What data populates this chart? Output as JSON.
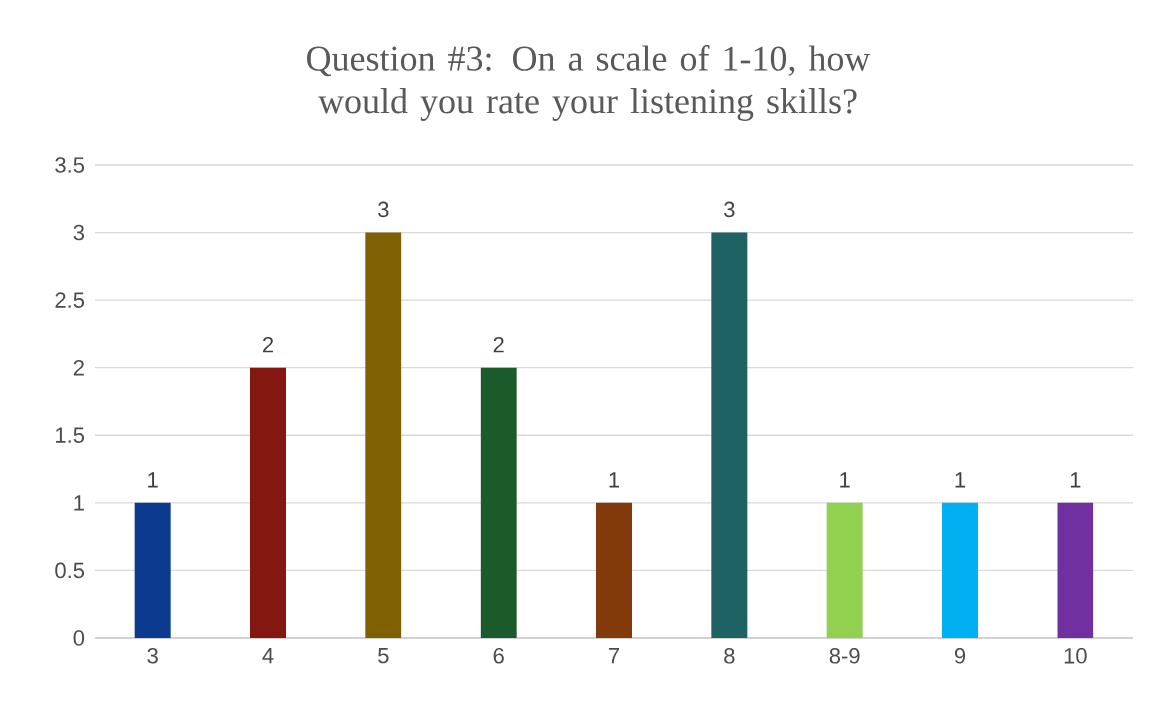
{
  "chart_data": {
    "type": "bar",
    "title": "Question #3: On a scale of 1-10, how would you rate your listening skills?",
    "categories": [
      "3",
      "4",
      "5",
      "6",
      "7",
      "8",
      "8-9",
      "9",
      "10"
    ],
    "values": [
      1,
      2,
      3,
      2,
      1,
      3,
      1,
      1,
      1
    ],
    "colors": [
      "#0b3a8f",
      "#84170f",
      "#7f6003",
      "#1b5a2b",
      "#833a0b",
      "#1f6264",
      "#92d050",
      "#00b0f0",
      "#7030a0"
    ],
    "ylim": [
      0,
      3.5
    ],
    "yticks": [
      0,
      0.5,
      1,
      1.5,
      2,
      2.5,
      3,
      3.5
    ],
    "grid": "y",
    "data_labels": true
  }
}
